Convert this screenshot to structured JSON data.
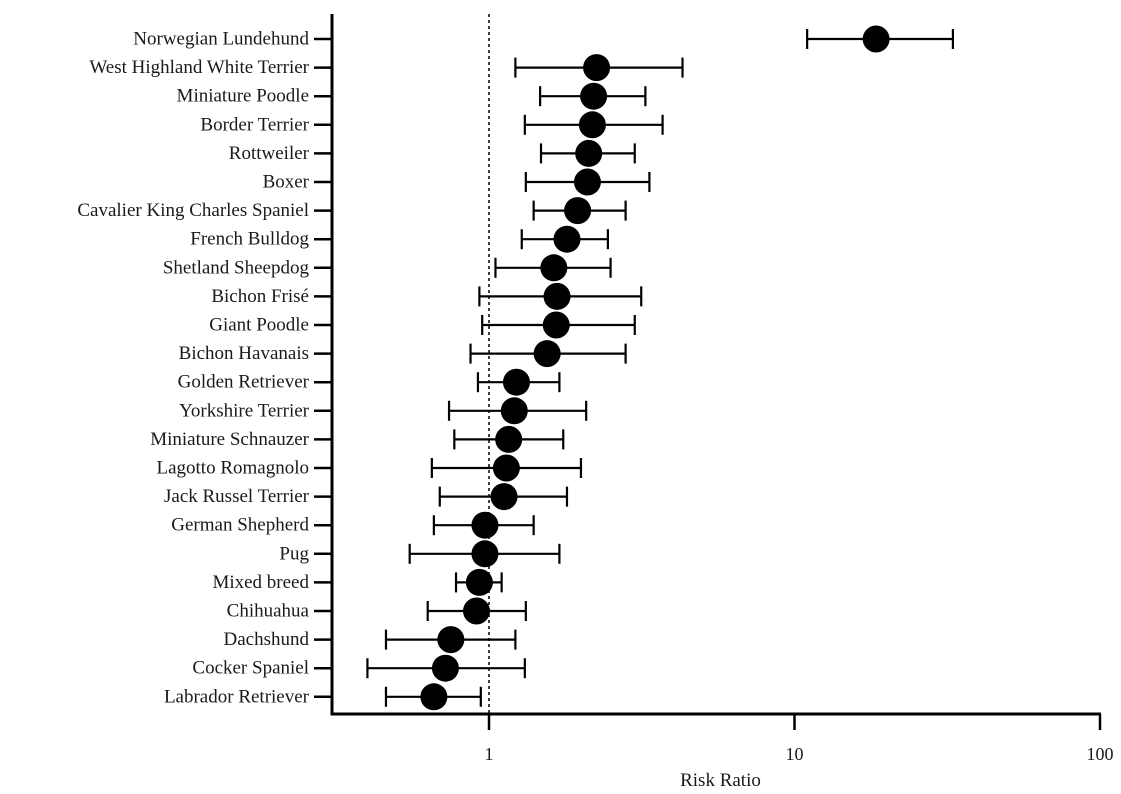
{
  "chart_data": {
    "type": "scatter",
    "title": "",
    "xlabel": "Risk Ratio",
    "ylabel": "",
    "x_scale": "log",
    "xlim": [
      0.3,
      100
    ],
    "x_ticks": [
      1,
      10,
      100
    ],
    "x_tick_labels": [
      "1",
      "10",
      "100"
    ],
    "reference_line": {
      "x": 1,
      "style": "dotted"
    },
    "grid": false,
    "legend": "none",
    "marker_color": "#000000",
    "categories": [
      "Norwegian Lundehund",
      "West Highland White Terrier",
      "Miniature Poodle",
      "Border Terrier",
      "Rottweiler",
      "Boxer",
      "Cavalier King Charles Spaniel",
      "French Bulldog",
      "Shetland Sheepdog",
      "Bichon Frisé",
      "Giant Poodle",
      "Bichon Havanais",
      "Golden Retriever",
      "Yorkshire Terrier",
      "Miniature Schnauzer",
      "Lagotto Romagnolo",
      "Jack Russel Terrier",
      "German Shepherd",
      "Pug",
      "Mixed breed",
      "Chihuahua",
      "Dachshund",
      "Cocker Spaniel",
      "Labrador Retriever"
    ],
    "values": [
      18.5,
      2.25,
      2.2,
      2.18,
      2.12,
      2.1,
      1.95,
      1.8,
      1.63,
      1.67,
      1.66,
      1.55,
      1.23,
      1.21,
      1.16,
      1.14,
      1.12,
      0.97,
      0.97,
      0.93,
      0.91,
      0.75,
      0.72,
      0.66
    ],
    "ci_low": [
      11.0,
      1.22,
      1.47,
      1.31,
      1.48,
      1.32,
      1.4,
      1.28,
      1.05,
      0.93,
      0.95,
      0.87,
      0.92,
      0.74,
      0.77,
      0.65,
      0.69,
      0.66,
      0.55,
      0.78,
      0.63,
      0.46,
      0.4,
      0.46
    ],
    "ci_high": [
      33.0,
      4.3,
      3.25,
      3.7,
      3.0,
      3.35,
      2.8,
      2.45,
      2.5,
      3.15,
      3.0,
      2.8,
      1.7,
      2.08,
      1.75,
      2.0,
      1.8,
      1.4,
      1.7,
      1.1,
      1.32,
      1.22,
      1.31,
      0.94
    ]
  }
}
